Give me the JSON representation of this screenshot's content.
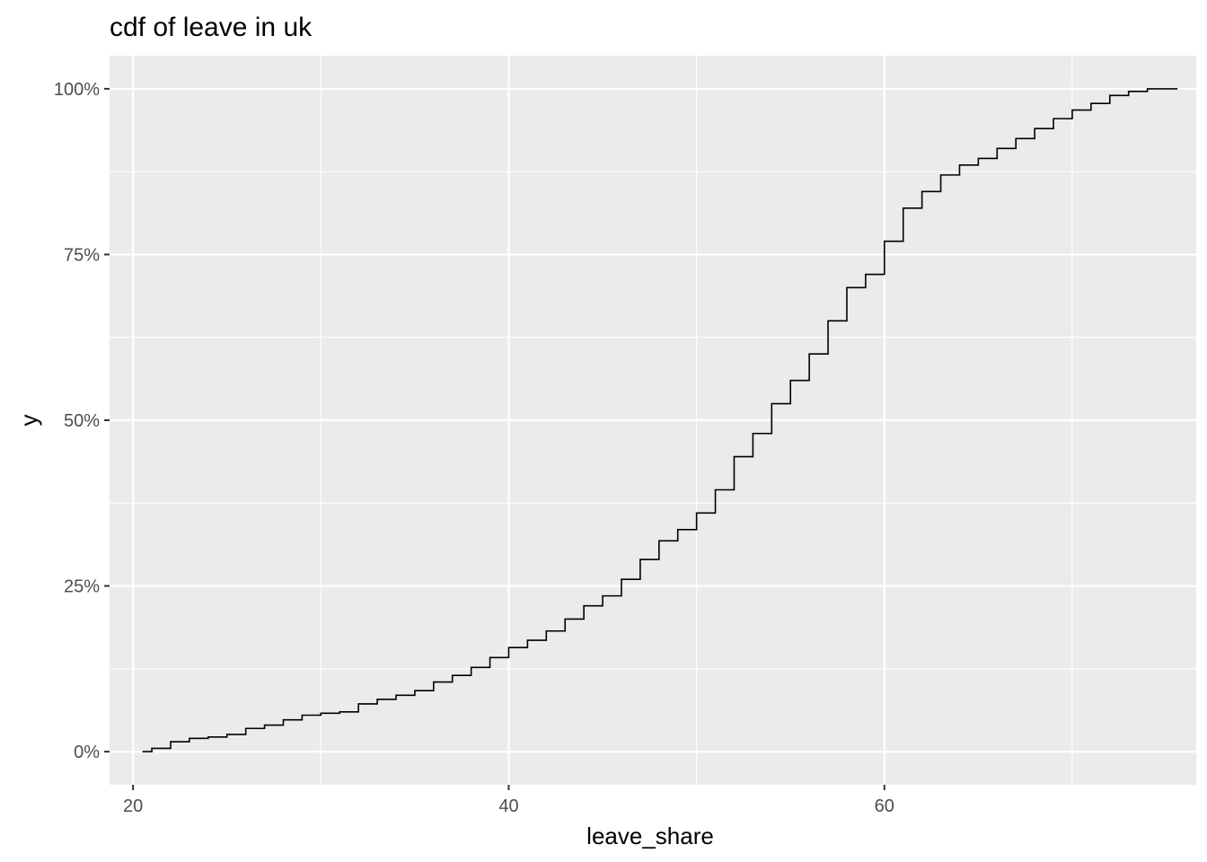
{
  "chart_data": {
    "type": "line",
    "title": "cdf of leave in uk",
    "xlabel": "leave_share",
    "ylabel": "y",
    "xlim": [
      18.75,
      76.6
    ],
    "ylim": [
      -0.05,
      1.05
    ],
    "x_ticks": [
      {
        "value": 20,
        "label": "20"
      },
      {
        "value": 40,
        "label": "40"
      },
      {
        "value": 60,
        "label": "60"
      }
    ],
    "x_minor_ticks": [
      30,
      50,
      70
    ],
    "y_ticks": [
      {
        "value": 0,
        "label": "0%"
      },
      {
        "value": 0.25,
        "label": "25%"
      },
      {
        "value": 0.5,
        "label": "50%"
      },
      {
        "value": 0.75,
        "label": "75%"
      },
      {
        "value": 1,
        "label": "100%"
      }
    ],
    "y_minor_ticks": [
      0.125,
      0.375,
      0.625,
      0.875
    ],
    "grid": true,
    "legend": "none",
    "series": [
      {
        "step": true,
        "color": "#000000",
        "x": [
          20.5,
          21.0,
          22.0,
          23.0,
          24.0,
          25.0,
          26.0,
          27.0,
          28.0,
          29.0,
          30.0,
          31.0,
          32.0,
          33.0,
          34.0,
          35.0,
          36.0,
          37.0,
          38.0,
          39.0,
          40.0,
          41.0,
          42.0,
          43.0,
          44.0,
          45.0,
          46.0,
          47.0,
          48.0,
          49.0,
          50.0,
          51.0,
          52.0,
          53.0,
          54.0,
          55.0,
          56.0,
          57.0,
          58.0,
          59.0,
          60.0,
          61.0,
          62.0,
          63.0,
          64.0,
          65.0,
          66.0,
          67.0,
          68.0,
          69.0,
          70.0,
          71.0,
          72.0,
          73.0,
          74.0,
          75.6
        ],
        "y": [
          0.0,
          0.005,
          0.015,
          0.02,
          0.022,
          0.026,
          0.035,
          0.04,
          0.048,
          0.055,
          0.058,
          0.06,
          0.072,
          0.079,
          0.085,
          0.092,
          0.105,
          0.115,
          0.127,
          0.142,
          0.157,
          0.168,
          0.182,
          0.2,
          0.22,
          0.235,
          0.26,
          0.29,
          0.318,
          0.335,
          0.36,
          0.395,
          0.445,
          0.48,
          0.525,
          0.56,
          0.6,
          0.65,
          0.7,
          0.72,
          0.77,
          0.82,
          0.845,
          0.87,
          0.885,
          0.895,
          0.91,
          0.925,
          0.94,
          0.955,
          0.968,
          0.978,
          0.99,
          0.996,
          1.0,
          1.0
        ]
      }
    ]
  }
}
